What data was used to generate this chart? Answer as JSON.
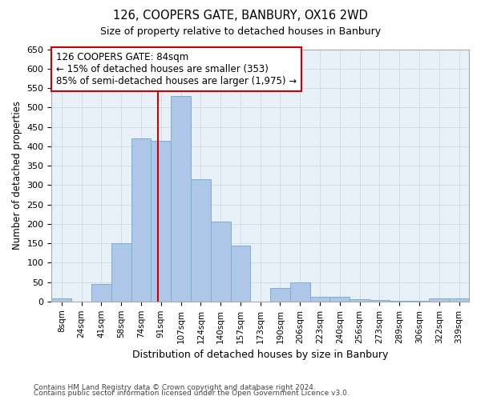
{
  "title1": "126, COOPERS GATE, BANBURY, OX16 2WD",
  "title2": "Size of property relative to detached houses in Banbury",
  "xlabel": "Distribution of detached houses by size in Banbury",
  "ylabel": "Number of detached properties",
  "categories": [
    "8sqm",
    "24sqm",
    "41sqm",
    "58sqm",
    "74sqm",
    "91sqm",
    "107sqm",
    "124sqm",
    "140sqm",
    "157sqm",
    "173sqm",
    "190sqm",
    "206sqm",
    "223sqm",
    "240sqm",
    "256sqm",
    "273sqm",
    "289sqm",
    "306sqm",
    "322sqm",
    "339sqm"
  ],
  "values": [
    8,
    0,
    45,
    150,
    420,
    415,
    530,
    315,
    205,
    143,
    0,
    35,
    50,
    13,
    13,
    5,
    3,
    1,
    1,
    7,
    7
  ],
  "bar_color": "#aec6e8",
  "bar_edge_color": "#7bafd4",
  "grid_color": "#d0dce8",
  "bg_color": "#e8f0f8",
  "vline_x": 4.85,
  "vline_color": "#cc0000",
  "annotation_text": "126 COOPERS GATE: 84sqm\n← 15% of detached houses are smaller (353)\n85% of semi-detached houses are larger (1,975) →",
  "annotation_box_facecolor": "#ffffff",
  "annotation_border_color": "#cc0000",
  "footer1": "Contains HM Land Registry data © Crown copyright and database right 2024.",
  "footer2": "Contains public sector information licensed under the Open Government Licence v3.0.",
  "ylim_max": 650,
  "ytick_step": 50
}
